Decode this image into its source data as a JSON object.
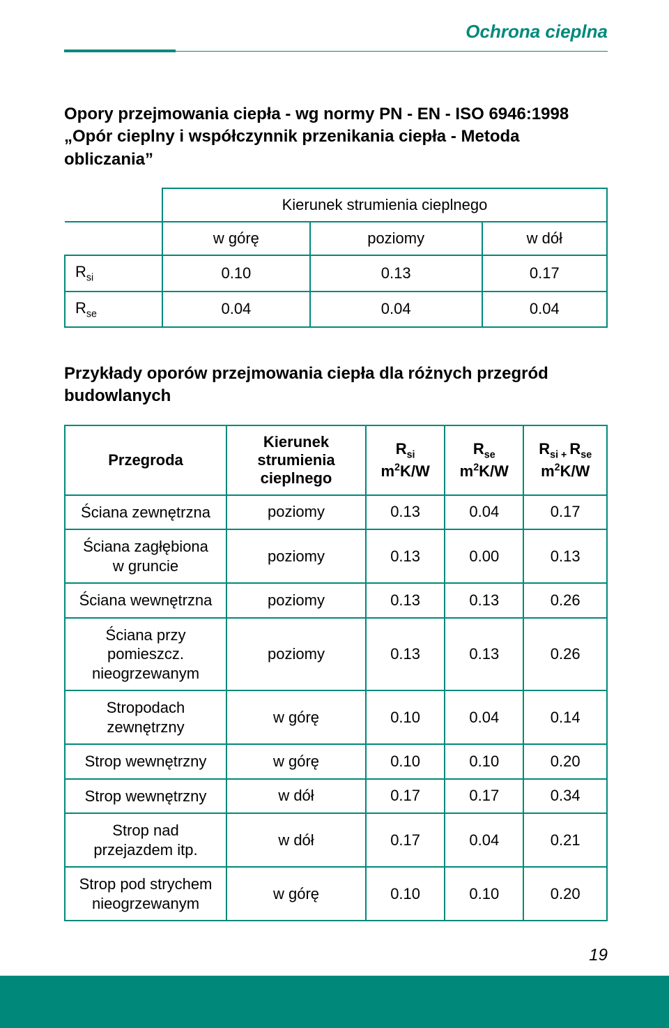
{
  "header": {
    "title": "Ochrona cieplna"
  },
  "section1": {
    "title": "Opory przejmowania ciepła - wg normy PN - EN - ISO 6946:1998 „Opór cieplny i współczynnik przenikania ciepła - Metoda obliczania”",
    "span_header": "Kierunek strumienia cieplnego",
    "cols": {
      "c1": "w górę",
      "c2": "poziomy",
      "c3": "w dół"
    },
    "rows": [
      {
        "label_prefix": "R",
        "label_sub": "si",
        "v1": "0.10",
        "v2": "0.13",
        "v3": "0.17"
      },
      {
        "label_prefix": "R",
        "label_sub": "se",
        "v1": "0.04",
        "v2": "0.04",
        "v3": "0.04"
      }
    ]
  },
  "section2": {
    "title": "Przykłady oporów przejmowania ciepła dla różnych przegród budowlanych",
    "headers": {
      "przegroda": "Przegroda",
      "kierunek": "Kierunek strumienia cieplnego",
      "rsi_label": "R",
      "rsi_sub": "si",
      "rse_label": "R",
      "rse_sub": "se",
      "rsum_label_a": "R",
      "rsum_sub_a": "si",
      "rsum_plus": " + ",
      "rsum_label_b": "R",
      "rsum_sub_b": "se",
      "unit_m": "m",
      "unit_sup": "2",
      "unit_rest": "K/W"
    },
    "rows": [
      {
        "name": "Ściana zewnętrzna",
        "dir": "poziomy",
        "rsi": "0.13",
        "rse": "0.04",
        "rsum": "0.17"
      },
      {
        "name": "Ściana zagłębiona\nw gruncie",
        "dir": "poziomy",
        "rsi": "0.13",
        "rse": "0.00",
        "rsum": "0.13"
      },
      {
        "name": "Ściana wewnętrzna",
        "dir": "poziomy",
        "rsi": "0.13",
        "rse": "0.13",
        "rsum": "0.26"
      },
      {
        "name": "Ściana przy pomieszcz.\nnieogrzewanym",
        "dir": "poziomy",
        "rsi": "0.13",
        "rse": "0.13",
        "rsum": "0.26"
      },
      {
        "name": "Stropodach zewnętrzny",
        "dir": "w górę",
        "rsi": "0.10",
        "rse": "0.04",
        "rsum": "0.14"
      },
      {
        "name": "Strop wewnętrzny",
        "dir": "w górę",
        "rsi": "0.10",
        "rse": "0.10",
        "rsum": "0.20"
      },
      {
        "name": "Strop wewnętrzny",
        "dir": "w dół",
        "rsi": "0.17",
        "rse": "0.17",
        "rsum": "0.34"
      },
      {
        "name": "Strop nad przejazdem itp.",
        "dir": "w dół",
        "rsi": "0.17",
        "rse": "0.04",
        "rsum": "0.21"
      },
      {
        "name": "Strop pod strychem\nnieogrzewanym",
        "dir": "w górę",
        "rsi": "0.10",
        "rse": "0.10",
        "rsum": "0.20"
      }
    ]
  },
  "page_number": "19",
  "colors": {
    "accent": "#00897b"
  }
}
